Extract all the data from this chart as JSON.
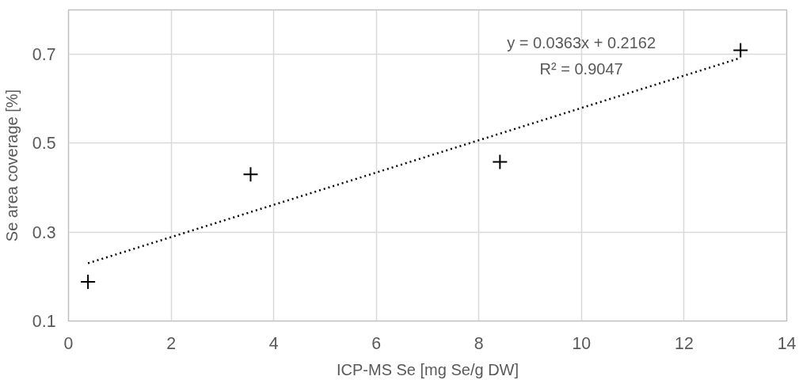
{
  "chart_data": {
    "type": "scatter",
    "xlabel": "ICP-MS Se [mg Se/g DW]",
    "ylabel": "Se area coverage [%]",
    "xlim": [
      0,
      14
    ],
    "xticks": [
      0,
      2,
      4,
      6,
      8,
      10,
      12,
      14
    ],
    "ylim": [
      0.1,
      0.8
    ],
    "yticks": [
      0.1,
      0.3,
      0.5,
      0.7
    ],
    "grid": true,
    "marker": "cross",
    "series": [
      {
        "color": "#000000",
        "x": [
          0.38,
          3.55,
          8.41,
          13.1
        ],
        "values": [
          0.188,
          0.43,
          0.458,
          0.709
        ]
      },
      {
        "type": "line",
        "color": "#000000",
        "line_style": "dotted",
        "marker": "none",
        "x": [
          0.38,
          13.1
        ],
        "values": [
          0.23,
          0.692
        ]
      }
    ],
    "annotations": [
      "y = 0.0363x + 0.2162",
      "R² = 0.9047"
    ]
  }
}
